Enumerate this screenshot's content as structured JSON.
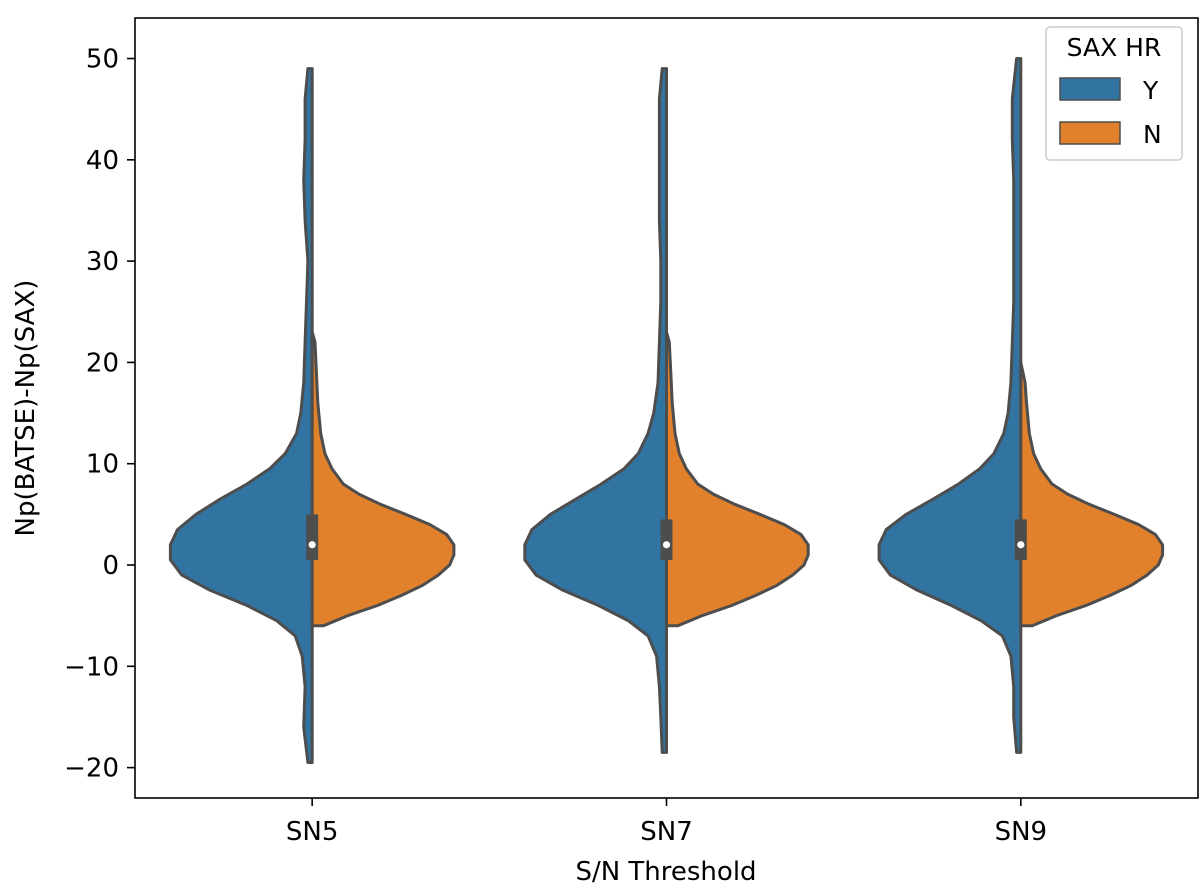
{
  "chart_data": {
    "type": "violin",
    "split": true,
    "xlabel": "S/N Threshold",
    "ylabel": "Np(BATSE)-Np(SAX)",
    "categories": [
      "SN5",
      "SN7",
      "SN9"
    ],
    "ylim": [
      -23,
      54
    ],
    "yticks": [
      -20,
      -10,
      0,
      10,
      20,
      30,
      40,
      50
    ],
    "ytick_labels": [
      "−20",
      "−10",
      "0",
      "10",
      "20",
      "30",
      "40",
      "50"
    ],
    "grid": false,
    "legend": {
      "title": "SAX HR",
      "placement": "upper-right",
      "entries": [
        {
          "label": "Y",
          "color": "#3274a1"
        },
        {
          "label": "N",
          "color": "#e1812c"
        }
      ]
    },
    "series": [
      {
        "name": "Y",
        "side": "left",
        "color": "#3274a1",
        "violins": [
          {
            "category": "SN5",
            "range": [
              -19.5,
              49
            ],
            "profile": [
              [
                -19.5,
                0.03
              ],
              [
                -16,
                0.06
              ],
              [
                -12,
                0.05
              ],
              [
                -9,
                0.07
              ],
              [
                -7,
                0.12
              ],
              [
                -5.5,
                0.25
              ],
              [
                -4,
                0.46
              ],
              [
                -2.5,
                0.72
              ],
              [
                -1,
                0.92
              ],
              [
                0.5,
                1.0
              ],
              [
                2,
                1.0
              ],
              [
                3.5,
                0.95
              ],
              [
                5,
                0.82
              ],
              [
                6.5,
                0.65
              ],
              [
                8,
                0.46
              ],
              [
                9.5,
                0.3
              ],
              [
                11,
                0.19
              ],
              [
                13,
                0.11
              ],
              [
                15,
                0.08
              ],
              [
                18,
                0.06
              ],
              [
                22,
                0.05
              ],
              [
                26,
                0.04
              ],
              [
                30,
                0.03
              ],
              [
                34,
                0.05
              ],
              [
                38,
                0.06
              ],
              [
                42,
                0.05
              ],
              [
                46,
                0.05
              ],
              [
                49,
                0.03
              ]
            ]
          },
          {
            "category": "SN7",
            "range": [
              -18.5,
              49
            ],
            "profile": [
              [
                -18.5,
                0.03
              ],
              [
                -15,
                0.04
              ],
              [
                -12,
                0.05
              ],
              [
                -9,
                0.07
              ],
              [
                -7,
                0.13
              ],
              [
                -5.5,
                0.27
              ],
              [
                -4,
                0.48
              ],
              [
                -2.5,
                0.73
              ],
              [
                -1,
                0.92
              ],
              [
                0.5,
                1.0
              ],
              [
                2,
                1.0
              ],
              [
                3.5,
                0.95
              ],
              [
                5,
                0.82
              ],
              [
                6.5,
                0.64
              ],
              [
                8,
                0.46
              ],
              [
                9.5,
                0.3
              ],
              [
                11,
                0.2
              ],
              [
                13,
                0.13
              ],
              [
                15,
                0.09
              ],
              [
                18,
                0.06
              ],
              [
                22,
                0.05
              ],
              [
                26,
                0.04
              ],
              [
                30,
                0.04
              ],
              [
                34,
                0.05
              ],
              [
                38,
                0.05
              ],
              [
                42,
                0.05
              ],
              [
                46,
                0.05
              ],
              [
                49,
                0.03
              ]
            ]
          },
          {
            "category": "SN9",
            "range": [
              -18.5,
              50
            ],
            "profile": [
              [
                -18.5,
                0.03
              ],
              [
                -15,
                0.05
              ],
              [
                -12,
                0.05
              ],
              [
                -9,
                0.07
              ],
              [
                -7,
                0.13
              ],
              [
                -5.5,
                0.28
              ],
              [
                -4,
                0.49
              ],
              [
                -2.5,
                0.73
              ],
              [
                -1,
                0.92
              ],
              [
                0.5,
                1.0
              ],
              [
                2,
                1.0
              ],
              [
                3.5,
                0.95
              ],
              [
                5,
                0.81
              ],
              [
                6.5,
                0.62
              ],
              [
                8,
                0.44
              ],
              [
                9.5,
                0.29
              ],
              [
                11,
                0.19
              ],
              [
                13,
                0.12
              ],
              [
                15,
                0.09
              ],
              [
                18,
                0.07
              ],
              [
                22,
                0.06
              ],
              [
                26,
                0.05
              ],
              [
                30,
                0.05
              ],
              [
                34,
                0.05
              ],
              [
                38,
                0.05
              ],
              [
                42,
                0.06
              ],
              [
                46,
                0.06
              ],
              [
                50,
                0.03
              ]
            ]
          }
        ]
      },
      {
        "name": "N",
        "side": "right",
        "color": "#e1812c",
        "violins": [
          {
            "category": "SN5",
            "range": [
              -6,
              23
            ],
            "profile": [
              [
                -6,
                0.08
              ],
              [
                -5,
                0.25
              ],
              [
                -4,
                0.46
              ],
              [
                -3,
                0.63
              ],
              [
                -2,
                0.78
              ],
              [
                -1,
                0.89
              ],
              [
                0,
                0.97
              ],
              [
                1,
                1.0
              ],
              [
                2,
                1.0
              ],
              [
                3,
                0.95
              ],
              [
                4,
                0.83
              ],
              [
                5,
                0.66
              ],
              [
                6,
                0.48
              ],
              [
                7,
                0.33
              ],
              [
                8,
                0.22
              ],
              [
                9.5,
                0.14
              ],
              [
                11,
                0.09
              ],
              [
                13,
                0.06
              ],
              [
                16,
                0.04
              ],
              [
                19,
                0.03
              ],
              [
                22,
                0.02
              ],
              [
                23,
                0.0
              ]
            ]
          },
          {
            "category": "SN7",
            "range": [
              -6,
              23
            ],
            "profile": [
              [
                -6,
                0.08
              ],
              [
                -5,
                0.25
              ],
              [
                -4,
                0.46
              ],
              [
                -3,
                0.63
              ],
              [
                -2,
                0.78
              ],
              [
                -1,
                0.89
              ],
              [
                0,
                0.97
              ],
              [
                1,
                1.0
              ],
              [
                2,
                1.0
              ],
              [
                3,
                0.95
              ],
              [
                4,
                0.83
              ],
              [
                5,
                0.66
              ],
              [
                6,
                0.48
              ],
              [
                7,
                0.33
              ],
              [
                8,
                0.22
              ],
              [
                9.5,
                0.14
              ],
              [
                11,
                0.09
              ],
              [
                13,
                0.06
              ],
              [
                16,
                0.04
              ],
              [
                19,
                0.03
              ],
              [
                22,
                0.02
              ],
              [
                23,
                0.0
              ]
            ]
          },
          {
            "category": "SN9",
            "range": [
              -6,
              20
            ],
            "profile": [
              [
                -6,
                0.08
              ],
              [
                -5,
                0.25
              ],
              [
                -4,
                0.46
              ],
              [
                -3,
                0.63
              ],
              [
                -2,
                0.78
              ],
              [
                -1,
                0.89
              ],
              [
                0,
                0.97
              ],
              [
                1,
                1.0
              ],
              [
                2,
                1.0
              ],
              [
                3,
                0.95
              ],
              [
                4,
                0.83
              ],
              [
                5,
                0.66
              ],
              [
                6,
                0.48
              ],
              [
                7,
                0.33
              ],
              [
                8,
                0.22
              ],
              [
                9.5,
                0.14
              ],
              [
                11,
                0.09
              ],
              [
                13,
                0.06
              ],
              [
                16,
                0.04
              ],
              [
                18,
                0.03
              ],
              [
                20,
                0.0
              ]
            ]
          }
        ]
      }
    ],
    "inner_box": [
      {
        "category": "SN5",
        "q1": 0.5,
        "median": 2,
        "q3": 5
      },
      {
        "category": "SN7",
        "q1": 0.5,
        "median": 2,
        "q3": 4.5
      },
      {
        "category": "SN9",
        "q1": 0.5,
        "median": 2,
        "q3": 4.5
      }
    ],
    "colors": {
      "edge": "#4d4d4d",
      "axis": "#000000",
      "median": "#ffffff"
    }
  }
}
